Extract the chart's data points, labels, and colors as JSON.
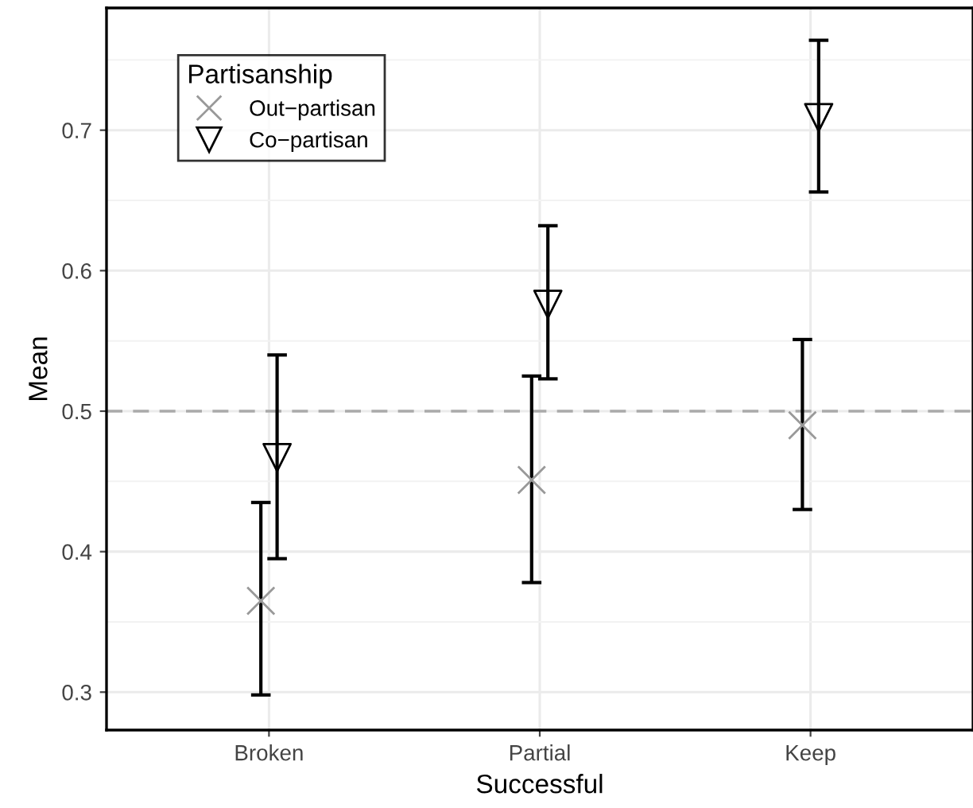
{
  "chart_data": {
    "type": "scatter",
    "xlabel": "Successful",
    "ylabel": "Mean",
    "legend_title": "Partisanship",
    "categories": [
      "Broken",
      "Partial",
      "Keep"
    ],
    "series": [
      {
        "name": "Out−partisan",
        "color": "#999999",
        "marker": "cross",
        "values": [
          0.365,
          0.451,
          0.49
        ],
        "errors": [
          [
            0.298,
            0.435
          ],
          [
            0.378,
            0.525
          ],
          [
            0.43,
            0.551
          ]
        ]
      },
      {
        "name": "Co−partisan",
        "color": "#000000",
        "marker": "triangle",
        "values": [
          0.467,
          0.576,
          0.709
        ],
        "errors": [
          [
            0.395,
            0.54
          ],
          [
            0.523,
            0.632
          ],
          [
            0.656,
            0.764
          ]
        ]
      }
    ],
    "ylim": [
      0.273,
      0.787
    ],
    "yticks": [
      0.3,
      0.4,
      0.5,
      0.6,
      0.7
    ],
    "ref_lines": [
      {
        "axis": "y",
        "value": 0.5,
        "color": "#aaaaaa",
        "line_style": "dashed"
      }
    ],
    "grid": true,
    "legend": "top left"
  }
}
